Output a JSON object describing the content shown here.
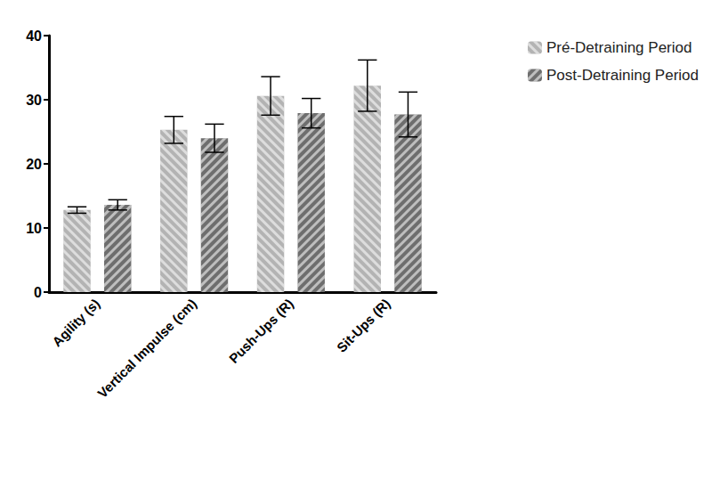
{
  "chart_data": {
    "type": "bar",
    "categories": [
      "Agility (s)",
      "Vertical Impulse (cm)",
      "Push-Ups (R)",
      "Sit-Ups (R)"
    ],
    "series": [
      {
        "name": "Pré-Detraining Period",
        "color": "#b3b3b3",
        "values": [
          12.8,
          25.3,
          30.6,
          32.2
        ],
        "errors": [
          0.5,
          2.1,
          3.0,
          4.0
        ]
      },
      {
        "name": "Post-Detraining Period",
        "color": "#6e6e6e",
        "values": [
          13.6,
          24.0,
          27.9,
          27.7
        ],
        "errors": [
          0.8,
          2.2,
          2.3,
          3.5
        ]
      }
    ],
    "ylim": [
      0,
      40
    ],
    "yticks": [
      0,
      10,
      20,
      30,
      40
    ],
    "grid": false,
    "legend": "upper right"
  }
}
